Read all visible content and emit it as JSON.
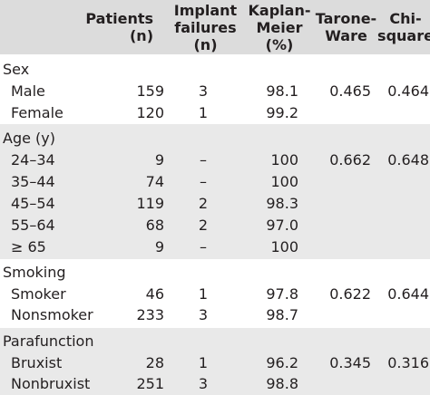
{
  "table": {
    "headers": {
      "patients": [
        "Patients",
        "(n)"
      ],
      "implant_failures": [
        "Implant",
        "failures",
        "(n)"
      ],
      "kaplan_meier": [
        "Kaplan-",
        "Meier",
        "(%)"
      ],
      "tarone_ware": [
        "Tarone-",
        "Ware"
      ],
      "chi_square": [
        "Chi-",
        "square"
      ]
    },
    "groups": [
      {
        "label": "Sex",
        "rows": [
          {
            "label": "Male",
            "patients": "159",
            "failures": "3",
            "km": "98.1"
          },
          {
            "label": "Female",
            "patients": "120",
            "failures": "1",
            "km": "99.2"
          }
        ],
        "tarone_ware": "0.465",
        "chi_square": "0.464"
      },
      {
        "label": "Age (y)",
        "rows": [
          {
            "label": "24–34",
            "patients": "9",
            "failures": "–",
            "km": "100"
          },
          {
            "label": "35–44",
            "patients": "74",
            "failures": "–",
            "km": "100"
          },
          {
            "label": "45–54",
            "patients": "119",
            "failures": "2",
            "km": "98.3"
          },
          {
            "label": "55–64",
            "patients": "68",
            "failures": "2",
            "km": "97.0"
          },
          {
            "label": "≥ 65",
            "patients": "9",
            "failures": "–",
            "km": "100"
          }
        ],
        "tarone_ware": "0.662",
        "chi_square": "0.648"
      },
      {
        "label": "Smoking",
        "rows": [
          {
            "label": "Smoker",
            "patients": "46",
            "failures": "1",
            "km": "97.8"
          },
          {
            "label": "Nonsmoker",
            "patients": "233",
            "failures": "3",
            "km": "98.7"
          }
        ],
        "tarone_ware": "0.622",
        "chi_square": "0.644"
      },
      {
        "label": "Parafunction",
        "rows": [
          {
            "label": "Bruxist",
            "patients": "28",
            "failures": "1",
            "km": "96.2"
          },
          {
            "label": "Nonbruxist",
            "patients": "251",
            "failures": "3",
            "km": "98.8"
          }
        ],
        "tarone_ware": "0.345",
        "chi_square": "0.316"
      }
    ]
  }
}
